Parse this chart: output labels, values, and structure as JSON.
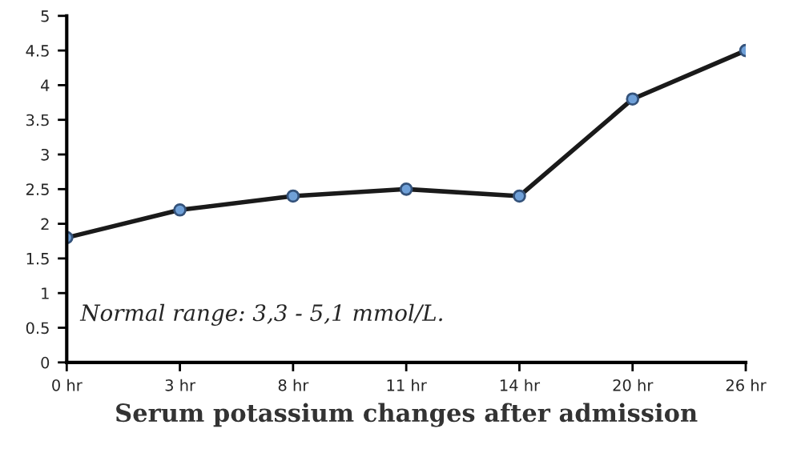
{
  "chart_data": {
    "type": "line",
    "xlabel": "Serum potassium changes after admission",
    "categories": [
      "0 hr",
      "3 hr",
      "8 hr",
      "11 hr",
      "14 hr",
      "20 hr",
      "26 hr"
    ],
    "series": [
      {
        "color": "#1a1a1a",
        "values": [
          1.8,
          2.2,
          2.4,
          2.5,
          2.4,
          3.8,
          4.5
        ]
      }
    ],
    "ylim": [
      0,
      5
    ],
    "yticks": [
      0,
      0.5,
      1,
      1.5,
      2,
      2.5,
      3,
      3.5,
      4,
      4.5,
      5
    ],
    "marker": "circle",
    "line_style": "solid",
    "grid": false,
    "legend": false,
    "annotations": [
      "Normal range: 3,3 - 5,1 mmol/L."
    ]
  }
}
